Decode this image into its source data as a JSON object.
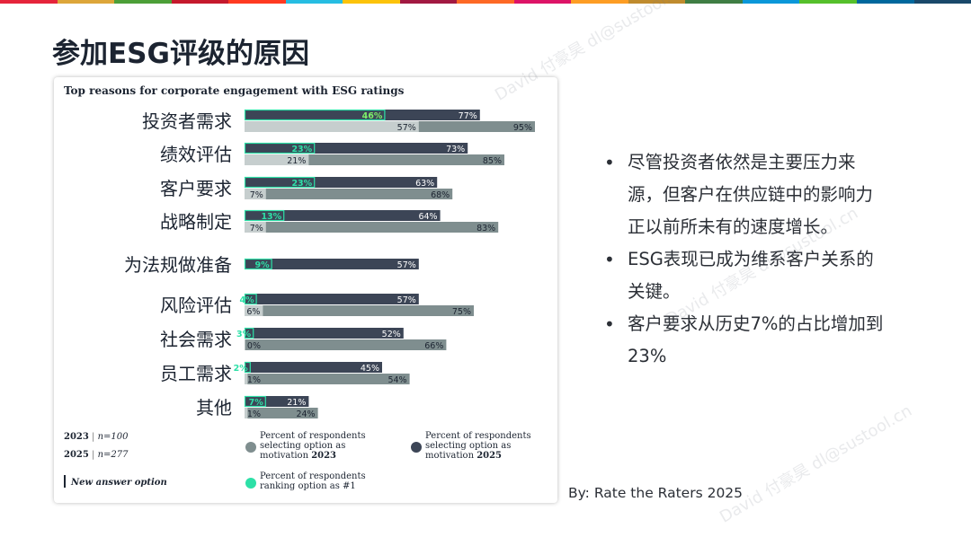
{
  "slide": {
    "title": "参加ESG评级的原因",
    "bullets": [
      "尽管投资者依然是主要压力来源，但客户在供应链中的影响力正以前所未有的速度增长。",
      "ESG表现已成为维系客户关系的关键。",
      "客户要求从历史7%的占比增加到23%"
    ],
    "source": "By: Rate the Raters 2025",
    "watermarks": [
      "David 付豪昊 dl@sustool.cn",
      "David 付豪昊 dl@sustool.cn",
      "David 付豪昊 dl@sustool.cn"
    ],
    "top_bar_colors": [
      "#e5243b",
      "#dda63a",
      "#4c9f38",
      "#c5192d",
      "#ff3a21",
      "#26bde2",
      "#fcc30b",
      "#a21942",
      "#fd6925",
      "#dd1367",
      "#fd9d24",
      "#bf8b2e",
      "#3f7e44",
      "#0a97d9",
      "#56c02b",
      "#00689d",
      "#19486a"
    ]
  },
  "chart_data": {
    "type": "bar",
    "orientation": "horizontal",
    "title": "Top reasons for corporate engagement with ESG ratings",
    "categories": [
      "投资者需求",
      "绩效评估",
      "客户要求",
      "战略制定",
      "为法规做准备",
      "风险评估",
      "社会需求",
      "员工需求",
      "其他"
    ],
    "series": [
      {
        "name": "Percent of respondents selecting option as motivation 2025",
        "color": "#3c4556",
        "values": [
          77,
          73,
          63,
          64,
          57,
          57,
          52,
          45,
          21
        ],
        "labels": [
          "77%",
          "73%",
          "63%",
          "64%",
          "57%",
          "57%",
          "52%",
          "45%",
          "21%"
        ]
      },
      {
        "name": "Percent of respondents ranking option as #1",
        "color": "#2de0a7",
        "values": [
          46,
          23,
          23,
          13,
          9,
          4,
          3,
          2,
          7
        ],
        "labels": [
          "46%",
          "23%",
          "23%",
          "13%",
          "9%",
          "4%",
          "3%",
          "2%",
          "7%"
        ]
      },
      {
        "name": "Percent of respondents selecting option as motivation 2023",
        "color": "#7f8e8f",
        "values": [
          95,
          85,
          68,
          83,
          null,
          75,
          66,
          54,
          24
        ],
        "labels": [
          "95%",
          "85%",
          "68%",
          "83%",
          "",
          "75%",
          "66%",
          "54%",
          "24%"
        ],
        "rank1_values": [
          57,
          21,
          7,
          7,
          null,
          6,
          0,
          1,
          1
        ],
        "rank1_labels": [
          "57%",
          "21%",
          "7%",
          "7%",
          "",
          "6%",
          "0%",
          "1%",
          "1%"
        ]
      }
    ],
    "xlim": [
      0,
      100
    ],
    "legend": {
      "samples": [
        {
          "year": "2023",
          "n": "n=100"
        },
        {
          "year": "2025",
          "n": "n=277"
        }
      ],
      "new_option": "New answer option",
      "items": [
        {
          "lines": [
            "Percent of respondents",
            "selecting option as",
            "motivation 2023"
          ],
          "color": "#7f8e8f"
        },
        {
          "lines": [
            "Percent of respondents",
            "selecting option as",
            "motivation 2025"
          ],
          "color": "#3c4556"
        },
        {
          "lines": [
            "Percent of respondents",
            "ranking option as #1"
          ],
          "color": "#2de0a7"
        }
      ]
    }
  }
}
